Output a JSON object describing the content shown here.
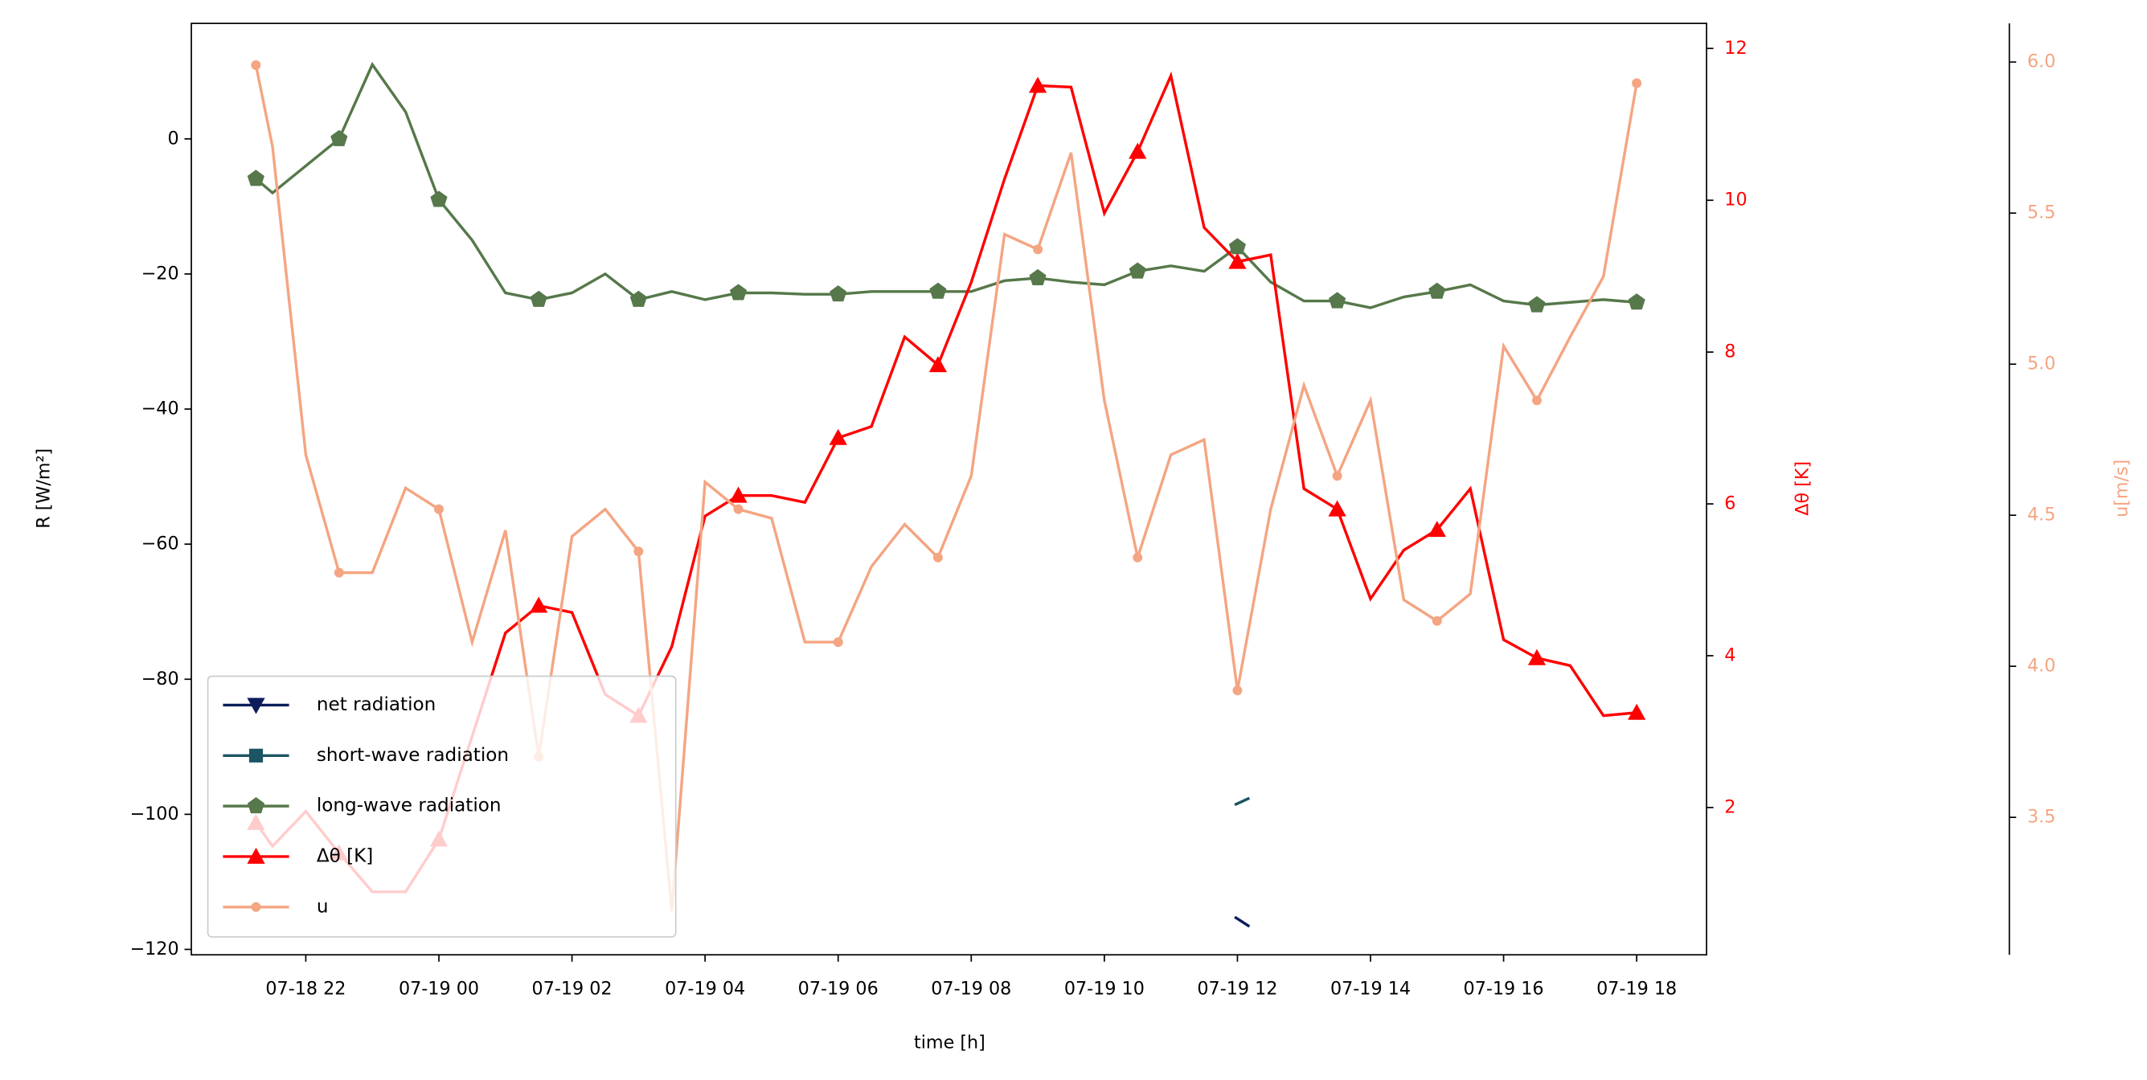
{
  "chart_data": {
    "type": "line",
    "xlabel": "time [h]",
    "ylabel": "R [W/m²]",
    "y2label": "Δθ [K]",
    "y3label": "u[m/s]",
    "xlim": [
      20.28,
      43.05
    ],
    "xticks": [
      {
        "value": 22,
        "label": "07-18 22"
      },
      {
        "value": 24,
        "label": "07-19 00"
      },
      {
        "value": 26,
        "label": "07-19 02"
      },
      {
        "value": 28,
        "label": "07-19 04"
      },
      {
        "value": 30,
        "label": "07-19 06"
      },
      {
        "value": 32,
        "label": "07-19 08"
      },
      {
        "value": 34,
        "label": "07-19 10"
      },
      {
        "value": 36,
        "label": "07-19 12"
      },
      {
        "value": 38,
        "label": "07-19 14"
      },
      {
        "value": 40,
        "label": "07-19 16"
      },
      {
        "value": 42,
        "label": "07-19 18"
      }
    ],
    "ylim": [
      -120.8,
      17.1
    ],
    "yticks": [
      {
        "value": -120,
        "label": "−120"
      },
      {
        "value": -100,
        "label": "−100"
      },
      {
        "value": -80,
        "label": "−80"
      },
      {
        "value": -60,
        "label": "−60"
      },
      {
        "value": -40,
        "label": "−40"
      },
      {
        "value": -20,
        "label": "−20"
      },
      0
    ],
    "y2lim": [
      0.06,
      12.33
    ],
    "y2ticks": [
      2,
      4,
      6,
      8,
      10,
      12
    ],
    "y2color": "#ff0000",
    "y3lim": [
      3.045,
      6.128
    ],
    "y3ticks": [
      3.5,
      {
        "value": 4,
        "label": "4.0"
      },
      4.5,
      {
        "value": 5,
        "label": "5.0"
      },
      5.5,
      {
        "value": 6,
        "label": "6.0"
      }
    ],
    "y3color": "#f4a582",
    "legend": "lower left",
    "x": [
      21.25,
      21.5,
      22,
      22.5,
      23,
      23.5,
      24,
      24.5,
      25,
      25.5,
      26,
      26.5,
      27,
      27.5,
      28,
      28.5,
      29,
      29.5,
      30,
      30.5,
      31,
      31.5,
      32,
      32.5,
      33,
      33.5,
      34,
      34.5,
      35,
      35.5,
      36,
      36.5,
      37,
      37.5,
      38,
      38.5,
      39,
      39.5,
      40,
      40.5,
      41,
      41.5,
      42
    ],
    "series": [
      {
        "name": "net radiation",
        "color": "#0b1e5b",
        "marker": "v",
        "x": [
          35.96,
          36.18
        ],
        "values": [
          -115.2,
          -116.6
        ]
      },
      {
        "name": "short-wave radiation",
        "color": "#1b5462",
        "marker": "s",
        "x": [
          35.96,
          36.18
        ],
        "values": [
          -98.6,
          -97.6
        ]
      },
      {
        "name": "long-wave radiation",
        "color": "#56784a",
        "marker": "p",
        "markevery": 3,
        "values": [
          -5.9,
          -8,
          -4,
          0,
          11,
          4,
          -9,
          -15,
          -22.8,
          -23.8,
          -22.8,
          -20,
          -23.8,
          -22.6,
          -23.8,
          -22.8,
          -22.8,
          -23,
          -23,
          -22.6,
          -22.6,
          -22.6,
          -22.6,
          -21,
          -20.6,
          -21.2,
          -21.6,
          -19.6,
          -18.8,
          -19.6,
          -16,
          -21.2,
          -24,
          -24,
          -25,
          -23.4,
          -22.6,
          -21.6,
          -24,
          -24.6,
          -24.2,
          -23.8,
          -24.2
        ]
      },
      {
        "name": "Δθ [K]",
        "color": "#ff0000",
        "marker": "^",
        "markevery": 3,
        "axis": "y2",
        "values": [
          1.8,
          1.49,
          1.95,
          1.4,
          0.89,
          0.89,
          1.58,
          2.94,
          4.3,
          4.66,
          4.57,
          3.49,
          3.21,
          4.12,
          5.84,
          6.11,
          6.11,
          6.02,
          6.87,
          7.02,
          8.2,
          7.83,
          8.92,
          10.28,
          11.51,
          11.49,
          9.83,
          10.64,
          11.64,
          9.64,
          9.19,
          9.28,
          6.2,
          5.93,
          4.75,
          5.39,
          5.66,
          6.2,
          4.21,
          3.97,
          3.87,
          3.21,
          3.25
        ]
      },
      {
        "name": "u",
        "color": "#f4a582",
        "marker": "o",
        "markevery": 3,
        "axis": "y3",
        "values": [
          5.99,
          5.72,
          4.7,
          4.31,
          4.31,
          4.59,
          4.52,
          4.08,
          4.45,
          3.7,
          4.43,
          4.52,
          4.38,
          3.19,
          4.61,
          4.52,
          4.49,
          4.08,
          4.08,
          4.33,
          4.47,
          4.36,
          4.63,
          5.43,
          5.38,
          5.7,
          4.88,
          4.36,
          4.7,
          4.75,
          3.92,
          4.52,
          4.93,
          4.63,
          4.88,
          4.22,
          4.15,
          4.24,
          5.06,
          4.88,
          5.09,
          5.29,
          5.93
        ]
      }
    ]
  }
}
